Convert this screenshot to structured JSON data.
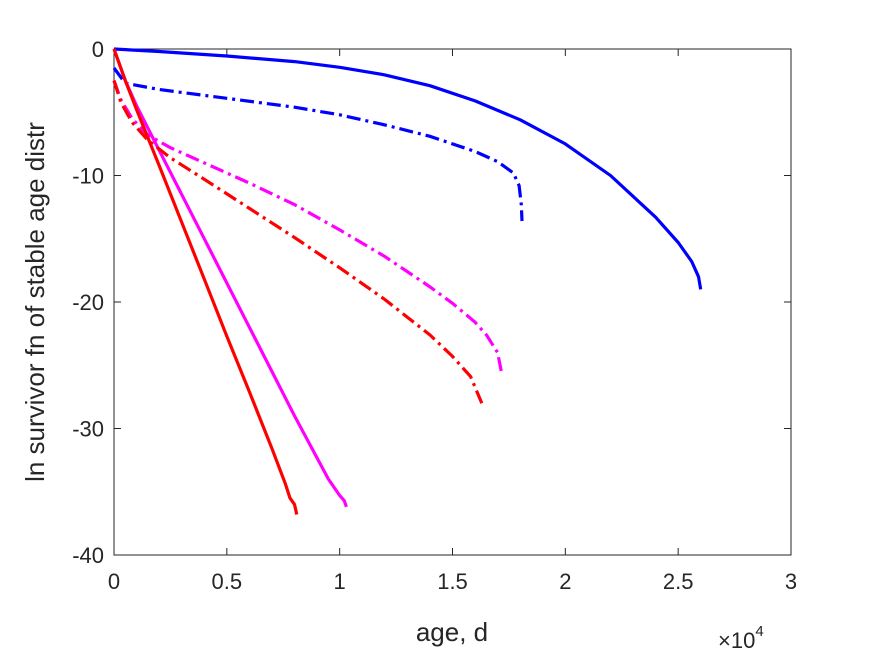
{
  "chart_data": {
    "type": "line",
    "title": "",
    "xlabel": "age, d",
    "ylabel": "ln survivor fn of stable age distr",
    "xlim": [
      0,
      30000
    ],
    "ylim": [
      -40,
      0
    ],
    "x_exponent_label": "×10",
    "x_exponent_power": "4",
    "x_ticks": [
      0,
      5000,
      10000,
      15000,
      20000,
      25000,
      30000
    ],
    "x_tick_labels": [
      "0",
      "0.5",
      "1",
      "1.5",
      "2",
      "2.5",
      "3"
    ],
    "y_ticks": [
      0,
      -10,
      -20,
      -30,
      -40
    ],
    "y_tick_labels": [
      "0",
      "-10",
      "-20",
      "-30",
      "-40"
    ],
    "grid": false,
    "legend": "none",
    "series": [
      {
        "color": "#0000ff",
        "dash": "solid",
        "x": [
          0,
          2000,
          5000,
          8000,
          10000,
          12000,
          14000,
          16000,
          18000,
          20000,
          22000,
          24000,
          25000,
          25600,
          25900,
          26000
        ],
        "y": [
          0,
          -0.2,
          -0.55,
          -1.0,
          -1.45,
          -2.05,
          -2.9,
          -4.1,
          -5.6,
          -7.5,
          -10.0,
          -13.3,
          -15.3,
          -16.8,
          -18.0,
          -19.0
        ]
      },
      {
        "color": "#0000ff",
        "dash": "dashdot",
        "x": [
          0,
          500,
          2000,
          5000,
          8000,
          10000,
          12000,
          14000,
          16000,
          17000,
          17700,
          17950,
          18050,
          18080
        ],
        "y": [
          -1.5,
          -2.7,
          -3.2,
          -3.9,
          -4.6,
          -5.2,
          -6.0,
          -6.9,
          -8.1,
          -8.9,
          -9.8,
          -10.8,
          -12.3,
          -13.6
        ]
      },
      {
        "color": "#ff00ff",
        "dash": "solid",
        "x": [
          0,
          500,
          1000,
          2000,
          4000,
          6000,
          8000,
          9500,
          10000,
          10200,
          10300
        ],
        "y": [
          0,
          -2.5,
          -4.5,
          -8.0,
          -15.0,
          -22.0,
          -29.0,
          -34.0,
          -35.3,
          -35.7,
          -36.2
        ]
      },
      {
        "color": "#ff00ff",
        "dash": "dashdot",
        "x": [
          0,
          300,
          800,
          1500,
          2500,
          4000,
          6000,
          8000,
          10000,
          12000,
          14000,
          15000,
          16000,
          16500,
          17000,
          17200
        ],
        "y": [
          -2.5,
          -4.0,
          -5.5,
          -6.8,
          -7.8,
          -9.0,
          -10.6,
          -12.3,
          -14.3,
          -16.4,
          -18.8,
          -20.1,
          -21.6,
          -22.6,
          -24.0,
          -25.8
        ]
      },
      {
        "color": "#ff0000",
        "dash": "solid",
        "x": [
          0,
          500,
          1000,
          2000,
          3000,
          4000,
          5000,
          6000,
          7000,
          7600,
          7800,
          8000,
          8100
        ],
        "y": [
          0,
          -2.5,
          -4.8,
          -9.2,
          -13.7,
          -18.2,
          -22.7,
          -27.1,
          -31.6,
          -34.4,
          -35.5,
          -36.0,
          -36.8
        ]
      },
      {
        "color": "#ff0000",
        "dash": "dashdot",
        "x": [
          0,
          300,
          800,
          1500,
          2500,
          4000,
          6000,
          8000,
          10000,
          12000,
          14000,
          15000,
          15800,
          16300
        ],
        "y": [
          -2.5,
          -4.2,
          -5.8,
          -7.2,
          -8.6,
          -10.3,
          -12.6,
          -14.9,
          -17.3,
          -19.8,
          -22.6,
          -24.3,
          -25.9,
          -28.0
        ]
      }
    ]
  }
}
